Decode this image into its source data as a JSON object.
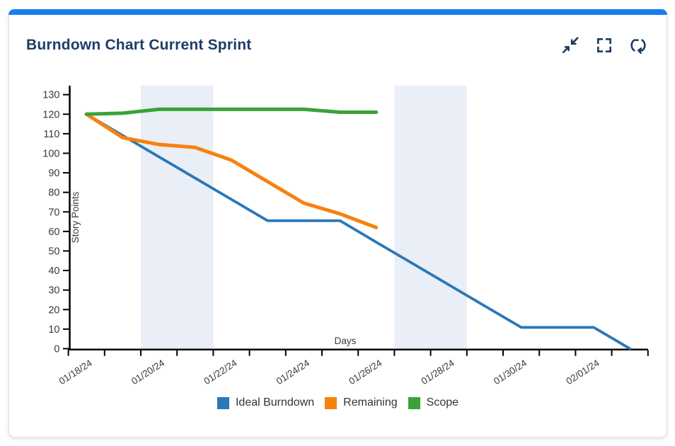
{
  "card": {
    "title": "Burndown Chart Current Sprint",
    "accent_color": "#1b7ceb"
  },
  "toolbar": {
    "icons": [
      "collapse-icon",
      "fullscreen-icon",
      "refresh-icon"
    ]
  },
  "chart_data": {
    "type": "line",
    "title": "Burndown Chart Current Sprint",
    "xlabel": "Days",
    "ylabel": "Story Points",
    "x": [
      "01/18/24",
      "01/19/24",
      "01/20/24",
      "01/21/24",
      "01/22/24",
      "01/23/24",
      "01/24/24",
      "01/25/24",
      "01/26/24",
      "01/27/24",
      "01/28/24",
      "01/29/24",
      "01/30/24",
      "01/31/24",
      "02/01/24",
      "02/02/24"
    ],
    "x_tick_labels": [
      "01/18/24",
      "01/20/24",
      "01/22/24",
      "01/24/24",
      "01/26/24",
      "01/28/24",
      "01/30/24",
      "02/01/24"
    ],
    "ylim": [
      0,
      130
    ],
    "ytick_step": 10,
    "y_tick_labels": [
      "0",
      "10",
      "20",
      "30",
      "40",
      "50",
      "60",
      "70",
      "80",
      "90",
      "100",
      "110",
      "120",
      "130"
    ],
    "grid": false,
    "legend_position": "bottom",
    "weekend_bands": [
      {
        "from": "01/20/24",
        "days": 2
      },
      {
        "from": "01/27/24",
        "days": 2
      }
    ],
    "colors": {
      "weekend_band": "#e9eef7",
      "axis": "#000000",
      "tick_text": "#3a3a3a"
    },
    "series": [
      {
        "name": "Ideal Burndown",
        "color": "#2b77b7",
        "values": [
          120,
          109.1,
          98.2,
          87.3,
          76.4,
          65.5,
          65.5,
          65.5,
          54.5,
          43.6,
          32.7,
          21.8,
          10.9,
          10.9,
          10.9,
          0
        ]
      },
      {
        "name": "Remaining",
        "color": "#f8810e",
        "values": [
          120,
          108,
          104.5,
          103,
          96.5,
          85.5,
          74.5,
          69,
          62
        ]
      },
      {
        "name": "Scope",
        "color": "#3aa23a",
        "values": [
          120,
          120.5,
          122.5,
          122.5,
          122.5,
          122.5,
          122.5,
          121,
          121
        ]
      }
    ]
  }
}
